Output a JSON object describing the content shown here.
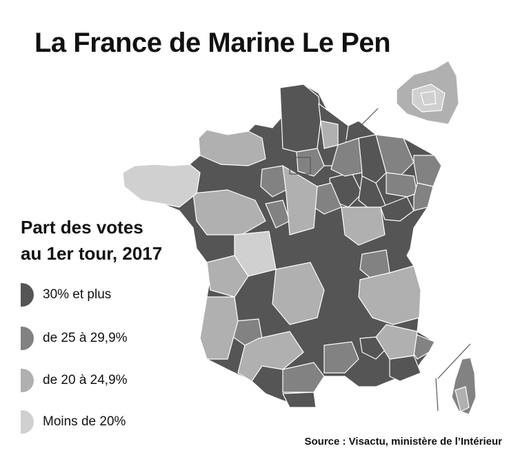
{
  "title": "La France de Marine Le Pen",
  "legend": {
    "title_line1": "Part des votes",
    "title_line2": "au 1er tour, 2017",
    "items": [
      {
        "label": "30% et plus",
        "color": "#555555"
      },
      {
        "label": "de 25 à 29,9%",
        "color": "#828282"
      },
      {
        "label": "de 20 à 24,9%",
        "color": "#b0b0b0"
      },
      {
        "label": "Moins de 20%",
        "color": "#d0d0d0"
      }
    ]
  },
  "source": "Source : Visactu, ministère de l’Intérieur",
  "colors": {
    "border": "#ffffff",
    "inset_line": "#555555"
  }
}
